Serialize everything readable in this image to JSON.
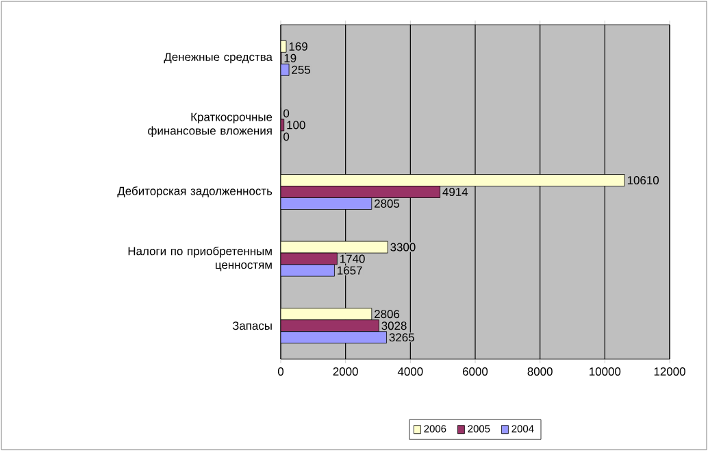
{
  "chart_data": {
    "type": "bar",
    "orientation": "horizontal",
    "categories": [
      "Денежные средства",
      "Краткосрочные финансовые вложения",
      "Дебиторская задолженность",
      "Налоги по приобретенным ценностям",
      "Запасы"
    ],
    "series": [
      {
        "name": "2006",
        "color": "#ffffcc",
        "values": [
          169,
          0,
          10610,
          3300,
          2806
        ]
      },
      {
        "name": "2005",
        "color": "#993366",
        "values": [
          19,
          100,
          4914,
          1740,
          3028
        ]
      },
      {
        "name": "2004",
        "color": "#9999ff",
        "values": [
          255,
          0,
          2805,
          1657,
          3265
        ]
      }
    ],
    "xlim": [
      0,
      12000
    ],
    "xticks": [
      0,
      2000,
      4000,
      6000,
      8000,
      10000,
      12000
    ],
    "grid": "x",
    "legend": "bottom",
    "data_labels": true
  }
}
